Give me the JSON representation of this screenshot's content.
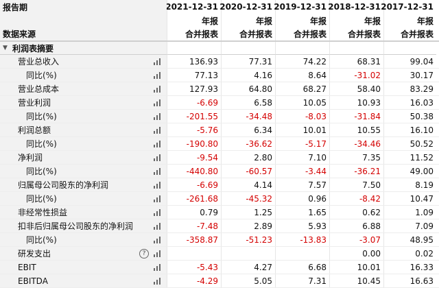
{
  "header": {
    "period_label": "报告期",
    "source_label": "数据来源",
    "dates": [
      "2021-12-31",
      "2020-12-31",
      "2019-12-31",
      "2018-12-31",
      "2017-12-31"
    ],
    "report_type": [
      "年报",
      "年报",
      "年报",
      "年报",
      "年报"
    ],
    "source": [
      "合并报表",
      "合并报表",
      "合并报表",
      "合并报表",
      "合并报表"
    ]
  },
  "section": {
    "title": "利润表摘要",
    "collapse_icon": "chevron-down-icon"
  },
  "rows": [
    {
      "label": "营业总收入",
      "values": [
        "136.93",
        "77.31",
        "74.22",
        "68.31",
        "99.04"
      ]
    },
    {
      "label": "同比(%)",
      "values": [
        "77.13",
        "4.16",
        "8.64",
        "-31.02",
        "30.17"
      ]
    },
    {
      "label": "营业总成本",
      "values": [
        "127.93",
        "64.80",
        "68.27",
        "58.40",
        "83.29"
      ]
    },
    {
      "label": "营业利润",
      "values": [
        "-6.69",
        "6.58",
        "10.05",
        "10.93",
        "16.03"
      ]
    },
    {
      "label": "同比(%)",
      "values": [
        "-201.55",
        "-34.48",
        "-8.03",
        "-31.84",
        "50.38"
      ]
    },
    {
      "label": "利润总额",
      "values": [
        "-5.76",
        "6.34",
        "10.01",
        "10.55",
        "16.10"
      ]
    },
    {
      "label": "同比(%)",
      "values": [
        "-190.80",
        "-36.62",
        "-5.17",
        "-34.46",
        "50.52"
      ]
    },
    {
      "label": "净利润",
      "values": [
        "-9.54",
        "2.80",
        "7.10",
        "7.35",
        "11.52"
      ]
    },
    {
      "label": "同比(%)",
      "values": [
        "-440.80",
        "-60.57",
        "-3.44",
        "-36.21",
        "49.00"
      ]
    },
    {
      "label": "归属母公司股东的净利润",
      "values": [
        "-6.69",
        "4.14",
        "7.57",
        "7.50",
        "8.19"
      ]
    },
    {
      "label": "同比(%)",
      "values": [
        "-261.68",
        "-45.32",
        "0.96",
        "-8.42",
        "10.47"
      ]
    },
    {
      "label": "非经常性损益",
      "values": [
        "0.79",
        "1.25",
        "1.65",
        "0.62",
        "1.09"
      ]
    },
    {
      "label": "扣非后归属母公司股东的净利润",
      "values": [
        "-7.48",
        "2.89",
        "5.93",
        "6.88",
        "7.09"
      ]
    },
    {
      "label": "同比(%)",
      "values": [
        "-358.87",
        "-51.23",
        "-13.83",
        "-3.07",
        "48.95"
      ]
    },
    {
      "label": "研发支出",
      "values": [
        "",
        "",
        "",
        "0.00",
        "0.02"
      ]
    },
    {
      "label": "EBIT",
      "values": [
        "-5.43",
        "4.27",
        "6.68",
        "10.01",
        "16.33"
      ]
    },
    {
      "label": "EBITDA",
      "values": [
        "-4.29",
        "5.05",
        "7.31",
        "10.45",
        "16.63"
      ]
    }
  ],
  "indent_rows": [
    1,
    4,
    6,
    8,
    10,
    13
  ],
  "help_row": 14,
  "icons": {
    "chart": "bar-chart-icon",
    "help": "help-icon"
  },
  "colors": {
    "negative": "#d40000",
    "label_bg": "#f2f2f2"
  }
}
